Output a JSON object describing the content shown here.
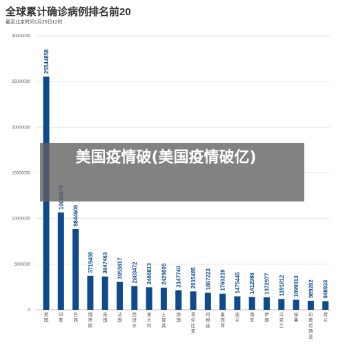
{
  "title": "全球累计确诊病例排名前20",
  "subtitle": "截至北京时间1月25日12时",
  "overlay_text": "美国疫情破(美国疫情破亿)",
  "colors": {
    "bar": "#0e4a8c",
    "grid": "#e6e6e6",
    "axis": "#bbbbbb",
    "tick": "#555555"
  },
  "chart_data": {
    "type": "bar",
    "title": "全球累计确诊病例排名前20",
    "subtitle": "截至北京时间1月25日12时",
    "ylim": [
      0,
      30000000
    ],
    "yticks": [
      "0",
      "5000000",
      "10000000",
      "15000000",
      "20000000",
      "25000000",
      "30000000"
    ],
    "grid": true,
    "categories": [
      "美国",
      "印度",
      "巴西",
      "俄罗斯",
      "英国",
      "法国",
      "西班牙",
      "意大利",
      "土耳其",
      "德国",
      "哥伦比亚",
      "阿根廷",
      "墨西哥",
      "波兰",
      "南非",
      "伊朗",
      "乌克兰",
      "秘鲁",
      "印度尼西亚",
      "荷兰"
    ],
    "values": [
      25544858,
      10668674,
      8844600,
      3719400,
      3647463,
      3053617,
      2603472,
      2466813,
      2429605,
      2147740,
      2015485,
      1867223,
      1763219,
      1475445,
      1412986,
      1372977,
      1191812,
      1099013,
      989262,
      948933
    ]
  }
}
